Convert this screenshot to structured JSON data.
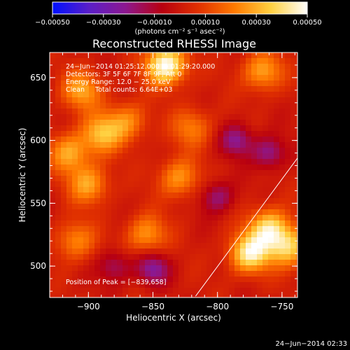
{
  "chart_data": {
    "type": "heatmap",
    "title": "Reconstructed RHESSI Image",
    "xlabel": "Heliocentric X (arcsec)",
    "ylabel": "Heliocentric Y (arcsec)",
    "x_ticks": [
      -900,
      -850,
      -800,
      -750
    ],
    "x_tick_labels": [
      "−900",
      "−850",
      "−800",
      "−750"
    ],
    "y_ticks": [
      500,
      550,
      600,
      650
    ],
    "y_tick_labels": [
      "500",
      "550",
      "600",
      "650"
    ],
    "xlim": [
      -930,
      -738
    ],
    "ylim": [
      475,
      670
    ],
    "colorbar": {
      "range": [
        -0.0005,
        0.0005
      ],
      "ticks": [
        -0.0005,
        -0.0003,
        -0.0001,
        0.0001,
        0.0003,
        0.0005
      ],
      "tick_labels": [
        "−0.00050",
        "−0.00030",
        "−0.00010",
        "0.00010",
        "0.00030",
        "0.00050"
      ],
      "unit_label": "(photons cm⁻² s⁻¹ asec⁻²)",
      "colors": [
        "#0010ff",
        "#5a1ec8",
        "#8c1890",
        "#b80010",
        "#e03000",
        "#ff7a00",
        "#ffd040",
        "#ffffff"
      ]
    },
    "annotations": [
      "24−Jun−2014 01:25:12.000 to 01:29:20.000",
      "Detectors: 3F 5F 6F 7F 8F 9F, Att 0",
      "Energy Range: 12.0 − 25.0 keV",
      "Clean     Total counts: 6.64E+03"
    ],
    "peak_label": "Position of Peak = [−839,658]",
    "limb_line": {
      "from": [
        -817,
        476
      ],
      "to": [
        -738,
        586
      ]
    },
    "hotspots": [
      {
        "x": -840,
        "y": 660,
        "value": 1.0
      },
      {
        "x": -775,
        "y": 510,
        "value": 0.85
      },
      {
        "x": -760,
        "y": 530,
        "value": 0.75
      },
      {
        "x": -745,
        "y": 515,
        "value": 0.7
      },
      {
        "x": -905,
        "y": 640,
        "value": 0.55
      },
      {
        "x": -890,
        "y": 605,
        "value": 0.6
      },
      {
        "x": -915,
        "y": 590,
        "value": 0.55
      },
      {
        "x": -765,
        "y": 655,
        "value": 0.55
      },
      {
        "x": -900,
        "y": 565,
        "value": 0.55
      },
      {
        "x": -830,
        "y": 570,
        "value": 0.5
      },
      {
        "x": -855,
        "y": 525,
        "value": 0.5
      },
      {
        "x": -910,
        "y": 520,
        "value": 0.45
      },
      {
        "x": -870,
        "y": 615,
        "value": 0.45
      },
      {
        "x": -820,
        "y": 610,
        "value": 0.4
      }
    ],
    "coldspots": [
      {
        "x": -850,
        "y": 498,
        "value": -0.5
      },
      {
        "x": -785,
        "y": 600,
        "value": -0.45
      },
      {
        "x": -800,
        "y": 555,
        "value": -0.4
      },
      {
        "x": -760,
        "y": 590,
        "value": -0.45
      },
      {
        "x": -880,
        "y": 500,
        "value": -0.35
      }
    ]
  },
  "footer": {
    "timestamp": "24−Jun−2014 02:33"
  }
}
